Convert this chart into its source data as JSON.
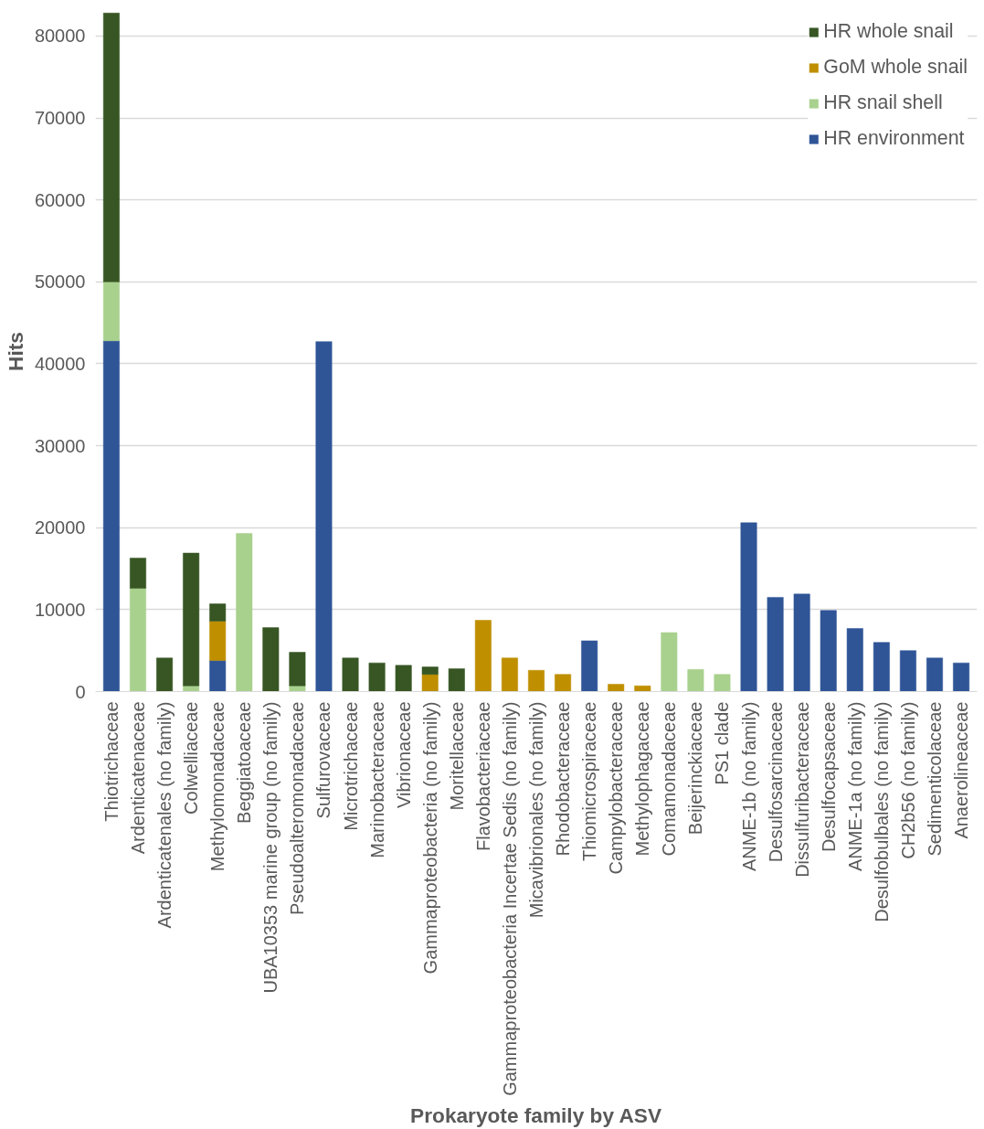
{
  "chart_data": {
    "type": "bar",
    "stacked": true,
    "xlabel": "Prokaryote family by ASV",
    "ylabel": "Hits",
    "categories": [
      "Thiotrichaceae",
      "Ardenticatenaceae",
      "Ardenticatenales (no family)",
      "Colwelliaceae",
      "Methylomonadaceae",
      "Beggiatoaceae",
      "UBA10353 marine group (no family)",
      "Pseudoalteromonadaceae",
      "Sulfurovaceae",
      "Microtrichaceae",
      "Marinobacteraceae",
      "Vibrionaceae",
      "Gammaproteobacteria (no family)",
      "Moritellaceae",
      "Flavobacteriaceae",
      "Gammaproteobacteria Incertae Sedis (no family)",
      "Micavibrionales (no family)",
      "Rhodobacteraceae",
      "Thiomicrospiraceae",
      "Campylobacteraceae",
      "Methylophagaceae",
      "Comamonadaceae",
      "Beijerinckiaceae",
      "PS1 clade",
      "ANME-1b (no family)",
      "Desulfosarcinaceae",
      "Dissulfuribacteraceae",
      "Desulfocapsaceae",
      "ANME-1a (no family)",
      "Desulfobulbales (no family)",
      "CH2b56 (no family)",
      "Sedimenticolaceae",
      "Anaerolineaceae"
    ],
    "series": [
      {
        "name": "HR environment",
        "color": "#2f5597",
        "values": [
          42800,
          null,
          null,
          null,
          3800,
          null,
          null,
          null,
          42700,
          null,
          null,
          null,
          null,
          null,
          null,
          null,
          null,
          null,
          6200,
          null,
          null,
          null,
          null,
          null,
          20600,
          11500,
          11900,
          9900,
          7700,
          6000,
          5000,
          4100,
          3500
        ]
      },
      {
        "name": "HR snail shell",
        "color": "#a9d18e",
        "values": [
          7200,
          12600,
          null,
          700,
          null,
          19300,
          null,
          700,
          null,
          null,
          null,
          null,
          null,
          null,
          null,
          null,
          null,
          null,
          null,
          null,
          null,
          7200,
          2700,
          2100,
          null,
          null,
          null,
          null,
          null,
          null,
          null,
          null,
          null
        ]
      },
      {
        "name": "GoM whole snail",
        "color": "#bf8f00",
        "values": [
          null,
          null,
          null,
          null,
          4800,
          null,
          null,
          null,
          null,
          null,
          null,
          null,
          2100,
          null,
          8700,
          4100,
          2600,
          2100,
          null,
          900,
          700,
          null,
          null,
          null,
          null,
          null,
          null,
          null,
          null,
          null,
          null,
          null,
          null
        ]
      },
      {
        "name": "HR whole snail",
        "color": "#375623",
        "values": [
          32800,
          3700,
          4100,
          16200,
          2100,
          null,
          7800,
          4100,
          null,
          4100,
          3500,
          3200,
          900,
          2800,
          null,
          null,
          null,
          null,
          null,
          null,
          null,
          null,
          null,
          null,
          null,
          null,
          null,
          null,
          null,
          null,
          null,
          null,
          null
        ]
      }
    ],
    "ylim": [
      0,
      83000
    ],
    "yticks": [
      0,
      10000,
      20000,
      30000,
      40000,
      50000,
      60000,
      70000,
      80000
    ],
    "grid": "y",
    "legend": "top right"
  }
}
